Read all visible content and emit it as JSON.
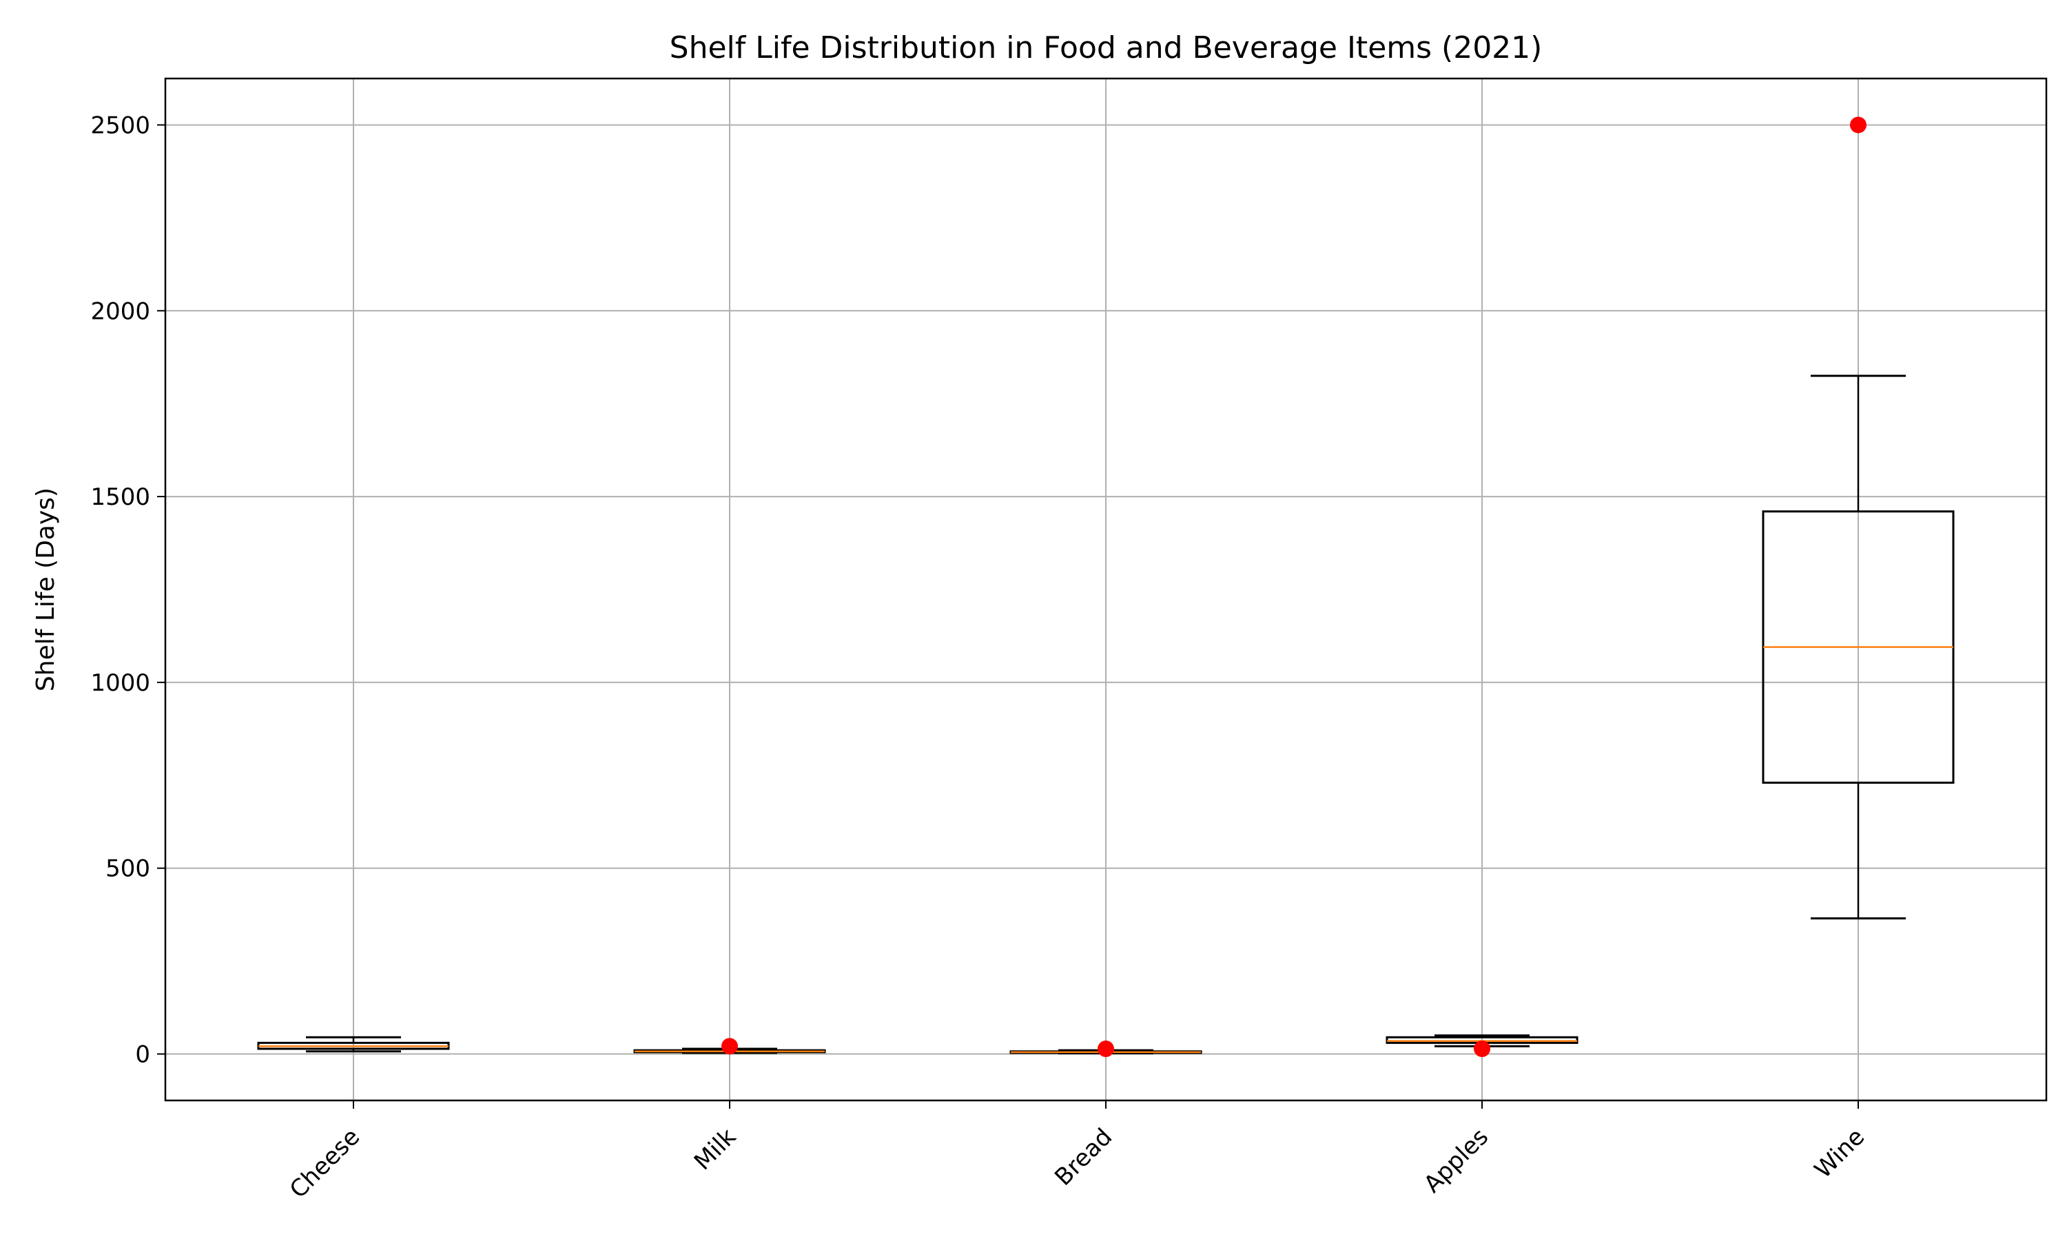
{
  "chart_data": {
    "type": "box",
    "title": "Shelf Life Distribution in Food and Beverage Items (2021)",
    "xlabel": "",
    "ylabel": "Shelf Life (Days)",
    "ylim": [
      -125,
      2625
    ],
    "yticks": [
      0,
      500,
      1000,
      1500,
      2000,
      2500
    ],
    "grid": true,
    "categories": [
      "Cheese",
      "Milk",
      "Bread",
      "Apples",
      "Wine"
    ],
    "boxes": [
      {
        "category": "Cheese",
        "whisker_low": 7,
        "q1": 14,
        "median": 21,
        "q3": 30,
        "whisker_high": 45,
        "outliers": []
      },
      {
        "category": "Milk",
        "whisker_low": 3,
        "q1": 5,
        "median": 7,
        "q3": 10,
        "whisker_high": 14,
        "outliers": [
          21
        ]
      },
      {
        "category": "Bread",
        "whisker_low": 2,
        "q1": 3,
        "median": 5,
        "q3": 7,
        "whisker_high": 10,
        "outliers": [
          14
        ]
      },
      {
        "category": "Apples",
        "whisker_low": 21,
        "q1": 30,
        "median": 35,
        "q3": 45,
        "whisker_high": 50,
        "outliers": [
          14
        ]
      },
      {
        "category": "Wine",
        "whisker_low": 365,
        "q1": 730,
        "median": 1095,
        "q3": 1460,
        "whisker_high": 1825,
        "outliers": [
          2500
        ]
      }
    ],
    "colors": {
      "box": "#000000",
      "median": "#ff7f0e",
      "outlier": "#ff0000",
      "grid": "#b0b0b0"
    }
  }
}
